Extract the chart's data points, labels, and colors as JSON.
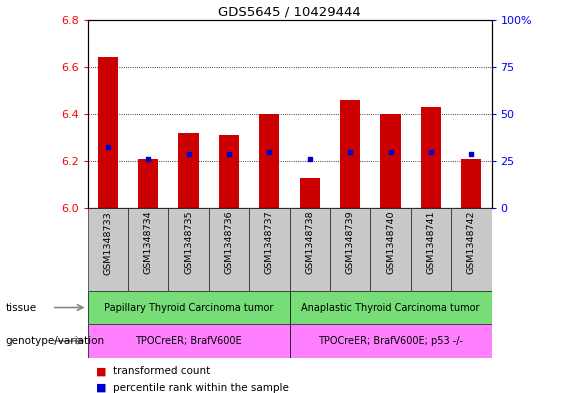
{
  "title": "GDS5645 / 10429444",
  "samples": [
    "GSM1348733",
    "GSM1348734",
    "GSM1348735",
    "GSM1348736",
    "GSM1348737",
    "GSM1348738",
    "GSM1348739",
    "GSM1348740",
    "GSM1348741",
    "GSM1348742"
  ],
  "red_values": [
    6.64,
    6.21,
    6.32,
    6.31,
    6.4,
    6.13,
    6.46,
    6.4,
    6.43,
    6.21
  ],
  "blue_values": [
    6.26,
    6.21,
    6.23,
    6.23,
    6.24,
    6.21,
    6.24,
    6.24,
    6.24,
    6.23
  ],
  "ylim_left": [
    6.0,
    6.8
  ],
  "ylim_right": [
    0,
    100
  ],
  "yticks_left": [
    6.0,
    6.2,
    6.4,
    6.6,
    6.8
  ],
  "yticks_right": [
    0,
    25,
    50,
    75,
    100
  ],
  "bar_width": 0.5,
  "bar_color": "#CC0000",
  "dot_color": "#0000CC",
  "tissue_group1": "Papillary Thyroid Carcinoma tumor",
  "tissue_group2": "Anaplastic Thyroid Carcinoma tumor",
  "genotype_group1": "TPOCreER; BrafV600E",
  "genotype_group2": "TPOCreER; BrafV600E; p53 -/-",
  "tissue_color": "#77DD77",
  "genotype_color": "#FF80FF",
  "n_group1": 5,
  "n_group2": 5,
  "legend_red": "transformed count",
  "legend_blue": "percentile rank within the sample",
  "tick_bg_color": "#C8C8C8"
}
